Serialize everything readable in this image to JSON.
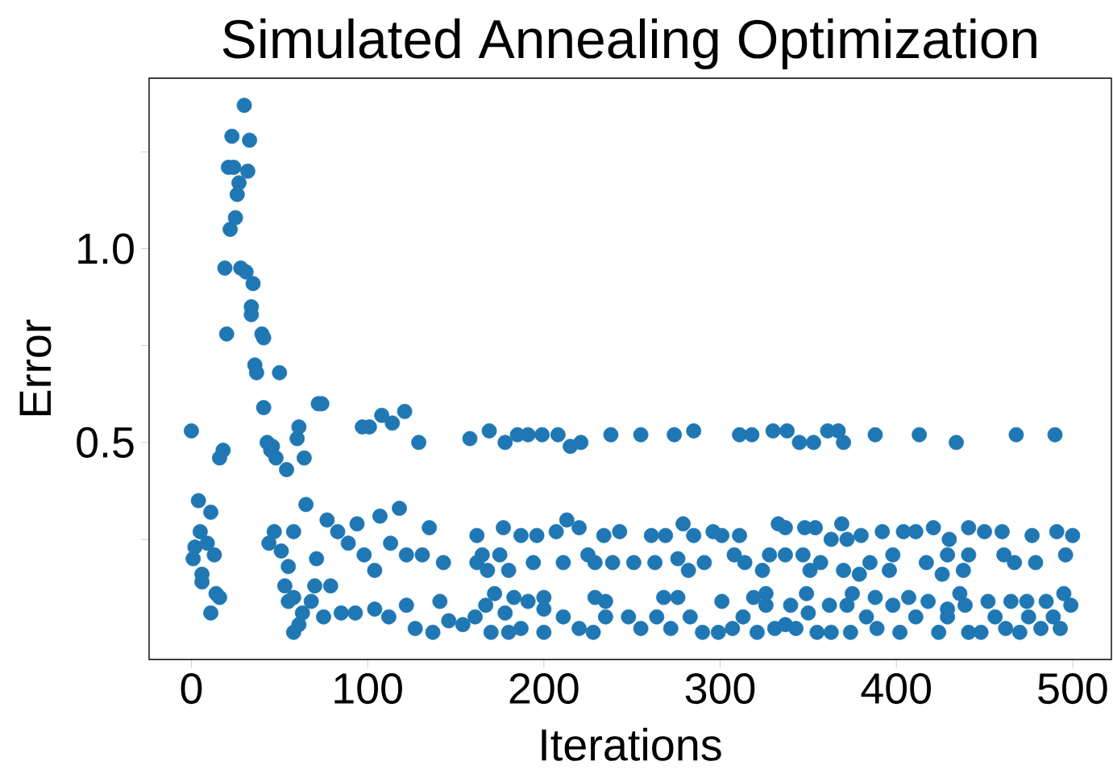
{
  "chart_data": {
    "type": "scatter",
    "title": "Simulated Annealing Optimization",
    "xlabel": "Iterations",
    "ylabel": "Error",
    "color": "#1f77b4",
    "grid": false,
    "xlim": [
      -24,
      522
    ],
    "ylim": [
      -0.06,
      1.44
    ],
    "xticks": [
      0,
      100,
      200,
      300,
      400,
      500
    ],
    "yticks": [
      {
        "value": 0.25,
        "label": null
      },
      0.5,
      {
        "value": 0.75,
        "label": null
      },
      {
        "value": 1,
        "label": "1.0"
      },
      {
        "value": 1.25,
        "label": null
      }
    ],
    "x": [
      0,
      1,
      4,
      2,
      5,
      6,
      6,
      9,
      11,
      11,
      13,
      14,
      16,
      16,
      18,
      19,
      20,
      22,
      21,
      24,
      23,
      25,
      26,
      27,
      28,
      30,
      31,
      32,
      33,
      34,
      34,
      35,
      36,
      37,
      40,
      41,
      41,
      43,
      45,
      46,
      48,
      50,
      54,
      60,
      61,
      64,
      72,
      74,
      97,
      101,
      108,
      114,
      121,
      129,
      47,
      44,
      51,
      58,
      55,
      71,
      65,
      53,
      55,
      58,
      63,
      61,
      58,
      70,
      68,
      79,
      77,
      83,
      89,
      94,
      98,
      104,
      107,
      118,
      113,
      122,
      131,
      135,
      143,
      75,
      85,
      93,
      104,
      112,
      122,
      127,
      137,
      141,
      146,
      154,
      158,
      169,
      178,
      185,
      191,
      199,
      208,
      215,
      221,
      238,
      255,
      274,
      285,
      311,
      318,
      330,
      338,
      345,
      353,
      361,
      367,
      370,
      388,
      413,
      434,
      468,
      490,
      162,
      177,
      187,
      196,
      207,
      213,
      220,
      234,
      243,
      261,
      269,
      279,
      285,
      296,
      301,
      311,
      333,
      162,
      165,
      168,
      175,
      180,
      194,
      211,
      225,
      229,
      239,
      251,
      263,
      276,
      282,
      291,
      308,
      314,
      324,
      328,
      172,
      167,
      178,
      183,
      191,
      200,
      200,
      229,
      235,
      268,
      276,
      301,
      319,
      326,
      326,
      161,
      170,
      180,
      187,
      200,
      211,
      220,
      228,
      235,
      248,
      255,
      264,
      272,
      283,
      290,
      299,
      307,
      313,
      321,
      331,
      337,
      348,
      354,
      363,
      369,
      372,
      380,
      392,
      404,
      411,
      421,
      430,
      441,
      450,
      460,
      477,
      491,
      500,
      337,
      347,
      351,
      357,
      370,
      379,
      385,
      396,
      398,
      417,
      426,
      429,
      438,
      441,
      461,
      467,
      479,
      496,
      349,
      340,
      350,
      362,
      372,
      375,
      388,
      398,
      407,
      418,
      429,
      436,
      439,
      452,
      465,
      474,
      485,
      495,
      499,
      337,
      343,
      355,
      363,
      374,
      383,
      389,
      402,
      411,
      424,
      429,
      441,
      448,
      456,
      462,
      470,
      475,
      482,
      489,
      493
    ],
    "values": [
      0.53,
      0.2,
      0.35,
      0.23,
      0.27,
      0.16,
      0.14,
      0.24,
      0.32,
      0.06,
      0.21,
      0.11,
      0.1,
      0.46,
      0.48,
      0.95,
      0.78,
      1.05,
      1.21,
      1.21,
      1.29,
      1.08,
      1.14,
      1.17,
      0.95,
      1.37,
      0.94,
      1.2,
      1.28,
      0.85,
      0.83,
      0.91,
      0.7,
      0.68,
      0.78,
      0.77,
      0.59,
      0.5,
      0.48,
      0.49,
      0.46,
      0.68,
      0.43,
      0.51,
      0.54,
      0.46,
      0.6,
      0.6,
      0.54,
      0.54,
      0.57,
      0.55,
      0.58,
      0.5,
      0.27,
      0.24,
      0.22,
      0.27,
      0.18,
      0.2,
      0.34,
      0.13,
      0.09,
      0.1,
      0.06,
      0.03,
      0.01,
      0.13,
      0.09,
      0.13,
      0.3,
      0.27,
      0.24,
      0.29,
      0.21,
      0.17,
      0.31,
      0.33,
      0.24,
      0.21,
      0.21,
      0.28,
      0.19,
      0.05,
      0.06,
      0.06,
      0.07,
      0.05,
      0.08,
      0.02,
      0.01,
      0.09,
      0.04,
      0.03,
      0.51,
      0.53,
      0.5,
      0.52,
      0.52,
      0.52,
      0.52,
      0.49,
      0.5,
      0.52,
      0.52,
      0.52,
      0.53,
      0.52,
      0.52,
      0.53,
      0.53,
      0.5,
      0.5,
      0.53,
      0.53,
      0.5,
      0.52,
      0.52,
      0.5,
      0.52,
      0.52,
      0.26,
      0.28,
      0.26,
      0.26,
      0.27,
      0.3,
      0.28,
      0.26,
      0.27,
      0.26,
      0.26,
      0.29,
      0.26,
      0.27,
      0.26,
      0.26,
      0.29,
      0.19,
      0.21,
      0.17,
      0.21,
      0.17,
      0.19,
      0.19,
      0.21,
      0.19,
      0.19,
      0.19,
      0.19,
      0.2,
      0.17,
      0.19,
      0.21,
      0.19,
      0.17,
      0.21,
      0.11,
      0.08,
      0.06,
      0.1,
      0.09,
      0.1,
      0.07,
      0.1,
      0.09,
      0.1,
      0.1,
      0.09,
      0.1,
      0.11,
      0.08,
      0.05,
      0.01,
      0.01,
      0.02,
      0.01,
      0.05,
      0.02,
      0.01,
      0.05,
      0.05,
      0.02,
      0.05,
      0.02,
      0.05,
      0.01,
      0.01,
      0.02,
      0.05,
      0.01,
      0.02,
      0.28,
      0.28,
      0.28,
      0.25,
      0.29,
      0.25,
      0.26,
      0.27,
      0.27,
      0.27,
      0.28,
      0.25,
      0.28,
      0.27,
      0.27,
      0.26,
      0.27,
      0.26,
      0.21,
      0.21,
      0.17,
      0.19,
      0.17,
      0.16,
      0.19,
      0.17,
      0.21,
      0.19,
      0.16,
      0.21,
      0.17,
      0.21,
      0.21,
      0.19,
      0.19,
      0.21,
      0.11,
      0.08,
      0.06,
      0.08,
      0.08,
      0.11,
      0.1,
      0.08,
      0.1,
      0.09,
      0.07,
      0.11,
      0.08,
      0.09,
      0.09,
      0.09,
      0.09,
      0.11,
      0.08,
      0.03,
      0.02,
      0.01,
      0.01,
      0.01,
      0.05,
      0.02,
      0.01,
      0.05,
      0.01,
      0.05,
      0.01,
      0.01,
      0.05,
      0.02,
      0.01,
      0.05,
      0.02,
      0.05,
      0.02
    ]
  }
}
